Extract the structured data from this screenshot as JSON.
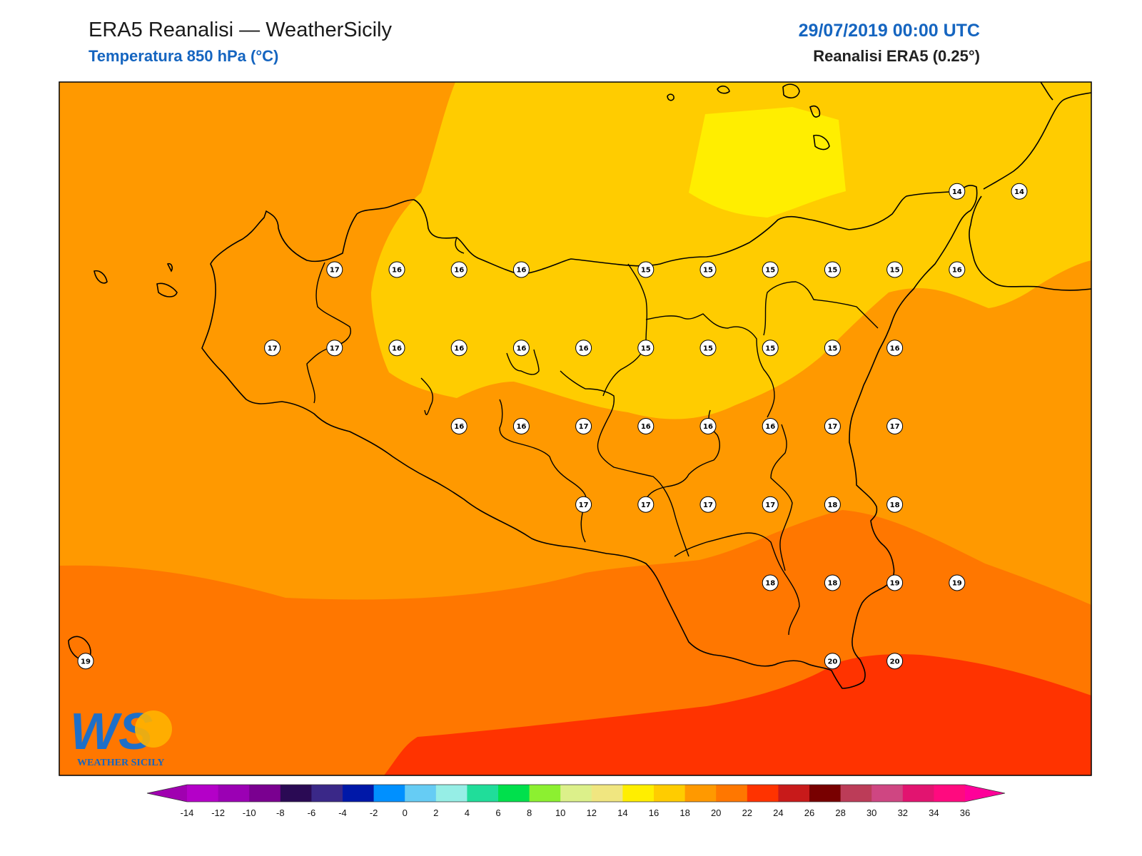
{
  "header": {
    "title": "ERA5 Reanalisi — WeatherSicily",
    "subtitle": "Temperatura 850 hPa (°C)",
    "datetime": "29/07/2019 00:00 UTC",
    "model": "Reanalisi ERA5 (0.25°)"
  },
  "logo": {
    "text": "WS",
    "caption": "WEATHER SICILY"
  },
  "colorbar": {
    "labels": [
      "-14",
      "-12",
      "-10",
      "-8",
      "-6",
      "-4",
      "-2",
      "0",
      "2",
      "4",
      "6",
      "8",
      "10",
      "12",
      "14",
      "16",
      "18",
      "20",
      "22",
      "24",
      "26",
      "28",
      "30",
      "32",
      "34",
      "36"
    ],
    "colors": [
      "#b400c8",
      "#9b00b4",
      "#7a0090",
      "#2a0a54",
      "#3a2888",
      "#0018a8",
      "#0090ff",
      "#66ccf4",
      "#96eee6",
      "#20dd9a",
      "#00e04c",
      "#8cf030",
      "#dcf08a",
      "#f0e680",
      "#ffee00",
      "#ffcc00",
      "#ff9900",
      "#ff7700",
      "#ff3300",
      "#c81a1a",
      "#780000",
      "#bc3c58",
      "#cf4682",
      "#e21470",
      "#ff0a7f"
    ]
  },
  "fill_colors": {
    "t14_16": "#ffcc00",
    "t16_18": "#ff9900",
    "t18_20": "#ff7700",
    "t20_22": "#ff3300",
    "t12_14": "#ffee00"
  },
  "stations": [
    {
      "v": "17",
      "lat": 38.25,
      "lon": 12.5
    },
    {
      "v": "16",
      "lat": 38.25,
      "lon": 13.0
    },
    {
      "v": "16",
      "lat": 38.25,
      "lon": 13.5
    },
    {
      "v": "16",
      "lat": 38.25,
      "lon": 14.0
    },
    {
      "v": "15",
      "lat": 38.25,
      "lon": 15.0
    },
    {
      "v": "15",
      "lat": 38.25,
      "lon": 15.5
    },
    {
      "v": "15",
      "lat": 38.25,
      "lon": 16.0
    },
    {
      "v": "15",
      "lat": 38.25,
      "lon": 16.5
    },
    {
      "v": "15",
      "lat": 38.25,
      "lon": 17.0
    },
    {
      "v": "16",
      "lat": 38.25,
      "lon": 17.5
    },
    {
      "v": "14",
      "lat": 38.75,
      "lon": 17.5
    },
    {
      "v": "14",
      "lat": 38.75,
      "lon": 18.0
    },
    {
      "v": "17",
      "lat": 37.75,
      "lon": 12.0
    },
    {
      "v": "17",
      "lat": 37.75,
      "lon": 12.5
    },
    {
      "v": "16",
      "lat": 37.75,
      "lon": 13.0
    },
    {
      "v": "16",
      "lat": 37.75,
      "lon": 13.5
    },
    {
      "v": "16",
      "lat": 37.75,
      "lon": 14.0
    },
    {
      "v": "16",
      "lat": 37.75,
      "lon": 14.5
    },
    {
      "v": "15",
      "lat": 37.75,
      "lon": 15.0
    },
    {
      "v": "15",
      "lat": 37.75,
      "lon": 15.5
    },
    {
      "v": "15",
      "lat": 37.75,
      "lon": 16.0
    },
    {
      "v": "15",
      "lat": 37.75,
      "lon": 16.5
    },
    {
      "v": "16",
      "lat": 37.75,
      "lon": 17.0
    },
    {
      "v": "16",
      "lat": 37.25,
      "lon": 13.5
    },
    {
      "v": "16",
      "lat": 37.25,
      "lon": 14.0
    },
    {
      "v": "17",
      "lat": 37.25,
      "lon": 14.5
    },
    {
      "v": "16",
      "lat": 37.25,
      "lon": 15.0
    },
    {
      "v": "16",
      "lat": 37.25,
      "lon": 15.5
    },
    {
      "v": "16",
      "lat": 37.25,
      "lon": 16.0
    },
    {
      "v": "17",
      "lat": 37.25,
      "lon": 16.5
    },
    {
      "v": "17",
      "lat": 37.25,
      "lon": 17.0
    },
    {
      "v": "17",
      "lat": 36.75,
      "lon": 14.5
    },
    {
      "v": "17",
      "lat": 36.75,
      "lon": 15.0
    },
    {
      "v": "17",
      "lat": 36.75,
      "lon": 15.5
    },
    {
      "v": "17",
      "lat": 36.75,
      "lon": 16.0
    },
    {
      "v": "18",
      "lat": 36.75,
      "lon": 16.5
    },
    {
      "v": "18",
      "lat": 36.75,
      "lon": 17.0
    },
    {
      "v": "18",
      "lat": 36.25,
      "lon": 16.0
    },
    {
      "v": "18",
      "lat": 36.25,
      "lon": 16.5
    },
    {
      "v": "19",
      "lat": 36.25,
      "lon": 17.0
    },
    {
      "v": "19",
      "lat": 36.25,
      "lon": 17.5
    },
    {
      "v": "20",
      "lat": 35.75,
      "lon": 16.5
    },
    {
      "v": "20",
      "lat": 35.75,
      "lon": 17.0
    },
    {
      "v": "19",
      "lat": 35.75,
      "lon": 10.5
    }
  ]
}
